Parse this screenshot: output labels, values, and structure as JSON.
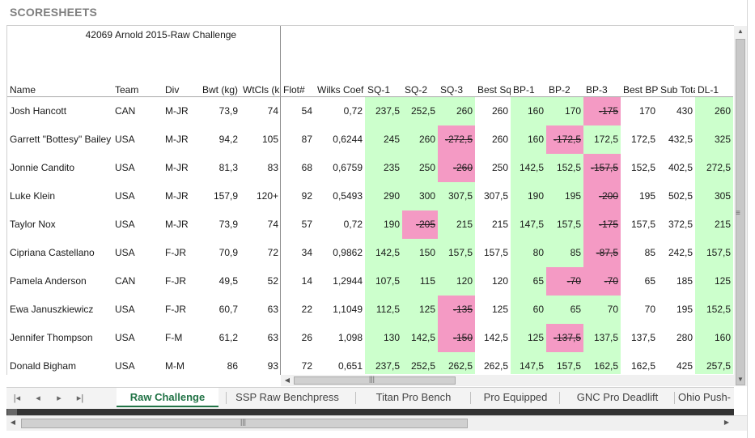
{
  "panel_title": "SCORESHEETS",
  "header": {
    "meet_id": "42069",
    "meet_name": "Arnold 2015-Raw Challenge",
    "columns": [
      "Name",
      "Team",
      "Div",
      "Bwt (kg)",
      "WtCls (k",
      "Flot#",
      "Wilks Coef",
      "SQ-1",
      "SQ-2",
      "SQ-3",
      "Best Sq",
      "BP-1",
      "BP-2",
      "BP-3",
      "Best BP",
      "Sub Total",
      "DL-1"
    ]
  },
  "colors": {
    "attempt_good": "#ccffcc",
    "attempt_missed": "#f49ac4",
    "accent": "#217346"
  },
  "rows": [
    {
      "cells": [
        "Josh Hancott",
        "CAN",
        "M-JR",
        "73,9",
        "74",
        "54",
        "0,72",
        "237,5",
        "252,5",
        "260",
        "260",
        "160",
        "170",
        "-175",
        "170",
        "430",
        "260"
      ],
      "missed": [
        13
      ]
    },
    {
      "cells": [
        "Garrett \"Bottesy\" Bailey",
        "USA",
        "M-JR",
        "94,2",
        "105",
        "87",
        "0,6244",
        "245",
        "260",
        "-272,5",
        "260",
        "160",
        "-172,5",
        "172,5",
        "172,5",
        "432,5",
        "325"
      ],
      "missed": [
        9,
        12
      ]
    },
    {
      "cells": [
        "Jonnie Candito",
        "USA",
        "M-JR",
        "81,3",
        "83",
        "68",
        "0,6759",
        "235",
        "250",
        "-260",
        "250",
        "142,5",
        "152,5",
        "-157,5",
        "152,5",
        "402,5",
        "272,5"
      ],
      "missed": [
        9,
        13
      ]
    },
    {
      "cells": [
        "Luke Klein",
        "USA",
        "M-JR",
        "157,9",
        "120+",
        "92",
        "0,5493",
        "290",
        "300",
        "307,5",
        "307,5",
        "190",
        "195",
        "-200",
        "195",
        "502,5",
        "305"
      ],
      "missed": [
        13
      ]
    },
    {
      "cells": [
        "Taylor Nox",
        "USA",
        "M-JR",
        "73,9",
        "74",
        "57",
        "0,72",
        "190",
        "-205",
        "215",
        "215",
        "147,5",
        "157,5",
        "-175",
        "157,5",
        "372,5",
        "215"
      ],
      "missed": [
        8,
        13
      ]
    },
    {
      "cells": [
        "Cipriana Castellano",
        "USA",
        "F-JR",
        "70,9",
        "72",
        "34",
        "0,9862",
        "142,5",
        "150",
        "157,5",
        "157,5",
        "80",
        "85",
        "-87,5",
        "85",
        "242,5",
        "157,5"
      ],
      "missed": [
        13
      ]
    },
    {
      "cells": [
        "Pamela Anderson",
        "CAN",
        "F-JR",
        "49,5",
        "52",
        "14",
        "1,2944",
        "107,5",
        "115",
        "120",
        "120",
        "65",
        "-70",
        "-70",
        "65",
        "185",
        "125"
      ],
      "missed": [
        12,
        13
      ]
    },
    {
      "cells": [
        "Ewa Januszkiewicz",
        "USA",
        "F-JR",
        "60,7",
        "63",
        "22",
        "1,1049",
        "112,5",
        "125",
        "-135",
        "125",
        "60",
        "65",
        "70",
        "70",
        "195",
        "152,5"
      ],
      "missed": [
        9
      ]
    },
    {
      "cells": [
        "Jennifer Thompson",
        "USA",
        "F-M",
        "61,2",
        "63",
        "26",
        "1,098",
        "130",
        "142,5",
        "-150",
        "142,5",
        "125",
        "-137,5",
        "137,5",
        "137,5",
        "280",
        "160"
      ],
      "missed": [
        9,
        12
      ]
    },
    {
      "cells": [
        "Donald Bigham",
        "USA",
        "M-M",
        "86",
        "93",
        "72",
        "0,651",
        "237,5",
        "252,5",
        "262,5",
        "262,5",
        "147,5",
        "157,5",
        "162,5",
        "162,5",
        "425",
        "257,5"
      ],
      "missed": []
    }
  ],
  "sheet_tabs": [
    "Raw Challenge",
    "SSP Raw Benchpress",
    "Titan Pro Bench",
    "Pro Equipped",
    "GNC Pro Deadlift",
    "Ohio Push-"
  ],
  "active_tab": "Raw Challenge",
  "nav_icons": [
    "first-sheet-icon",
    "prev-sheet-icon",
    "next-sheet-icon",
    "last-sheet-icon"
  ]
}
